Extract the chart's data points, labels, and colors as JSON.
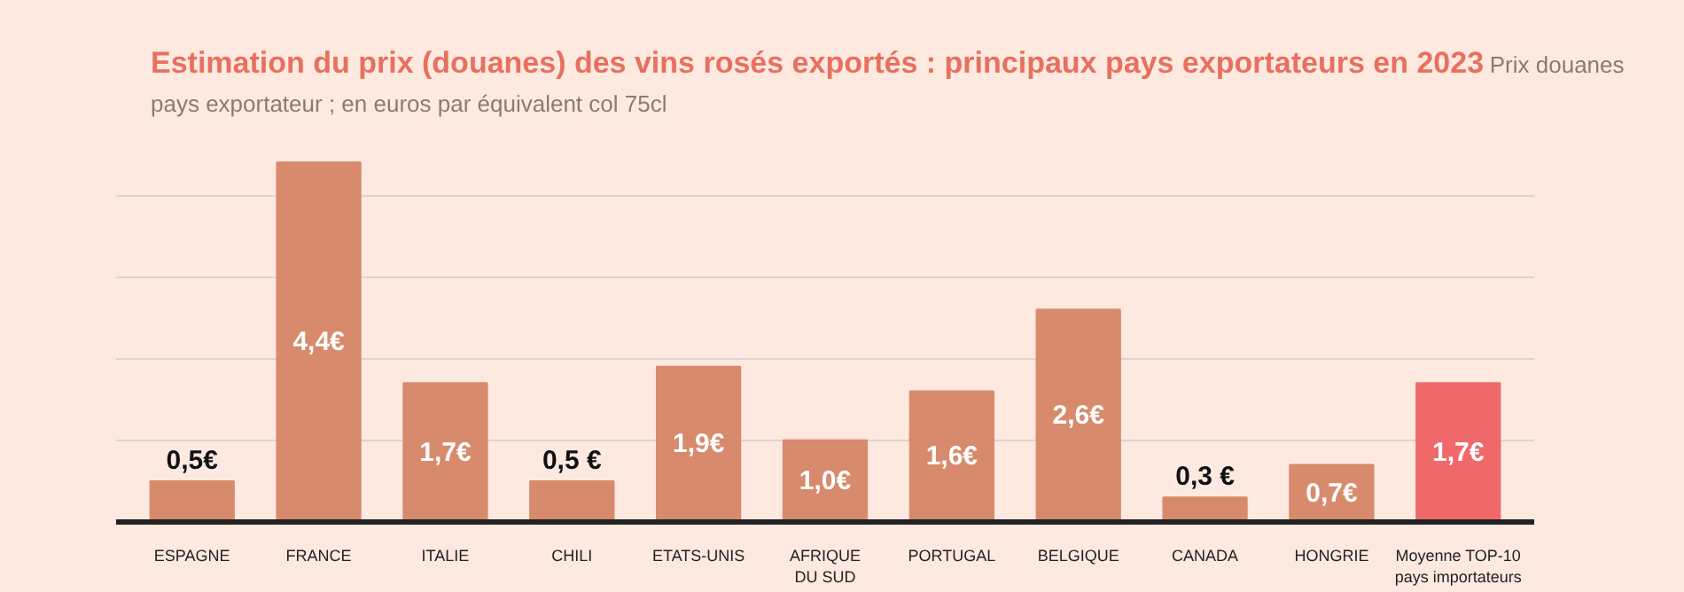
{
  "chart_data": {
    "type": "bar",
    "title": "Estimation du prix (douanes) des vins rosés exportés : principaux pays exportateurs en 2023",
    "subtitle": "Prix douanes pays exportateur ; en euros par équivalent col 75cl",
    "categories": [
      "ESPAGNE",
      "FRANCE",
      "ITALIE",
      "CHILI",
      "ETATS-UNIS",
      "AFRIQUE DU SUD",
      "PORTUGAL",
      "BELGIQUE",
      "CANADA",
      "HONGRIE",
      "Moyenne TOP-10 pays importateurs"
    ],
    "values": [
      0.5,
      4.4,
      1.7,
      0.5,
      1.9,
      1.0,
      1.6,
      2.6,
      0.3,
      0.7,
      1.7
    ],
    "value_labels": [
      "0,5€",
      "4,4€",
      "1,7€",
      "0,5 €",
      "1,9€",
      "1,0€",
      "1,6€",
      "2,6€",
      "0,3 €",
      "0,7€",
      "1,7€"
    ],
    "colors": [
      "#d88a6c",
      "#d88a6c",
      "#d88a6c",
      "#d88a6c",
      "#d88a6c",
      "#d88a6c",
      "#d88a6c",
      "#d88a6c",
      "#d88a6c",
      "#d88a6c",
      "#f0696a"
    ],
    "yticks": [
      {
        "value": 1,
        "label": null
      },
      {
        "value": 2,
        "label": null
      },
      {
        "value": 3,
        "label": null
      },
      {
        "value": 4,
        "label": null
      }
    ],
    "grid": "y",
    "tick_labels": "x"
  }
}
